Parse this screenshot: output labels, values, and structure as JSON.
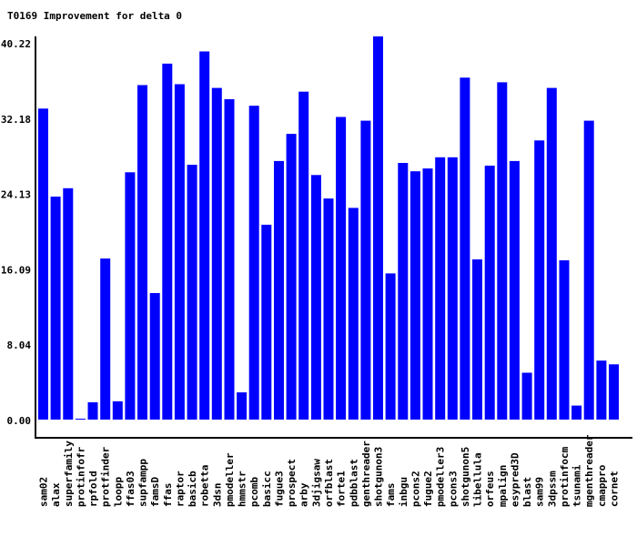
{
  "chart_data": {
    "type": "bar",
    "title": "T0169 Improvement for delta 0",
    "xlabel": "",
    "ylabel": "",
    "ylim": [
      0,
      40.22
    ],
    "yticks": [
      "0.00",
      "8.04",
      "16.09",
      "24.13",
      "32.18",
      "40.22"
    ],
    "grid": false,
    "bar_color": "#0000ff",
    "categories": [
      "sam02",
      "alax",
      "superfamily",
      "protinfofr",
      "rpfold",
      "protfinder",
      "loopp",
      "ffas03",
      "supfampp",
      "famsD",
      "ffas",
      "raptor",
      "basicb",
      "robetta",
      "3dsn",
      "pmodeller",
      "hmmstr",
      "pcomb",
      "basicc",
      "fugue3",
      "prospect",
      "arby",
      "3djigsaw",
      "orfblast",
      "forte1",
      "pdbblast",
      "genthreader",
      "shotgunon3",
      "fams",
      "inbgu",
      "pcons2",
      "fugue2",
      "pmodeller3",
      "pcons3",
      "shotgunon5",
      "libellula",
      "orfeus",
      "mpalign",
      "esypred3D",
      "blast",
      "sam99",
      "3dpssm",
      "protinfocm",
      "tsunami",
      "mgenthreader",
      "cmappro",
      "cornet"
    ],
    "values": [
      33.2,
      23.8,
      24.7,
      0.1,
      1.85,
      17.2,
      1.95,
      26.4,
      35.7,
      13.5,
      38.0,
      35.8,
      27.2,
      39.3,
      35.4,
      34.2,
      2.9,
      33.5,
      20.8,
      27.6,
      30.5,
      35.0,
      26.1,
      23.6,
      32.3,
      22.6,
      31.9,
      40.9,
      15.6,
      27.4,
      26.5,
      26.8,
      28.0,
      28.0,
      36.5,
      17.1,
      27.1,
      36.0,
      27.6,
      5.0,
      29.8,
      35.4,
      17.0,
      1.5,
      31.9,
      6.3,
      5.9
    ]
  }
}
